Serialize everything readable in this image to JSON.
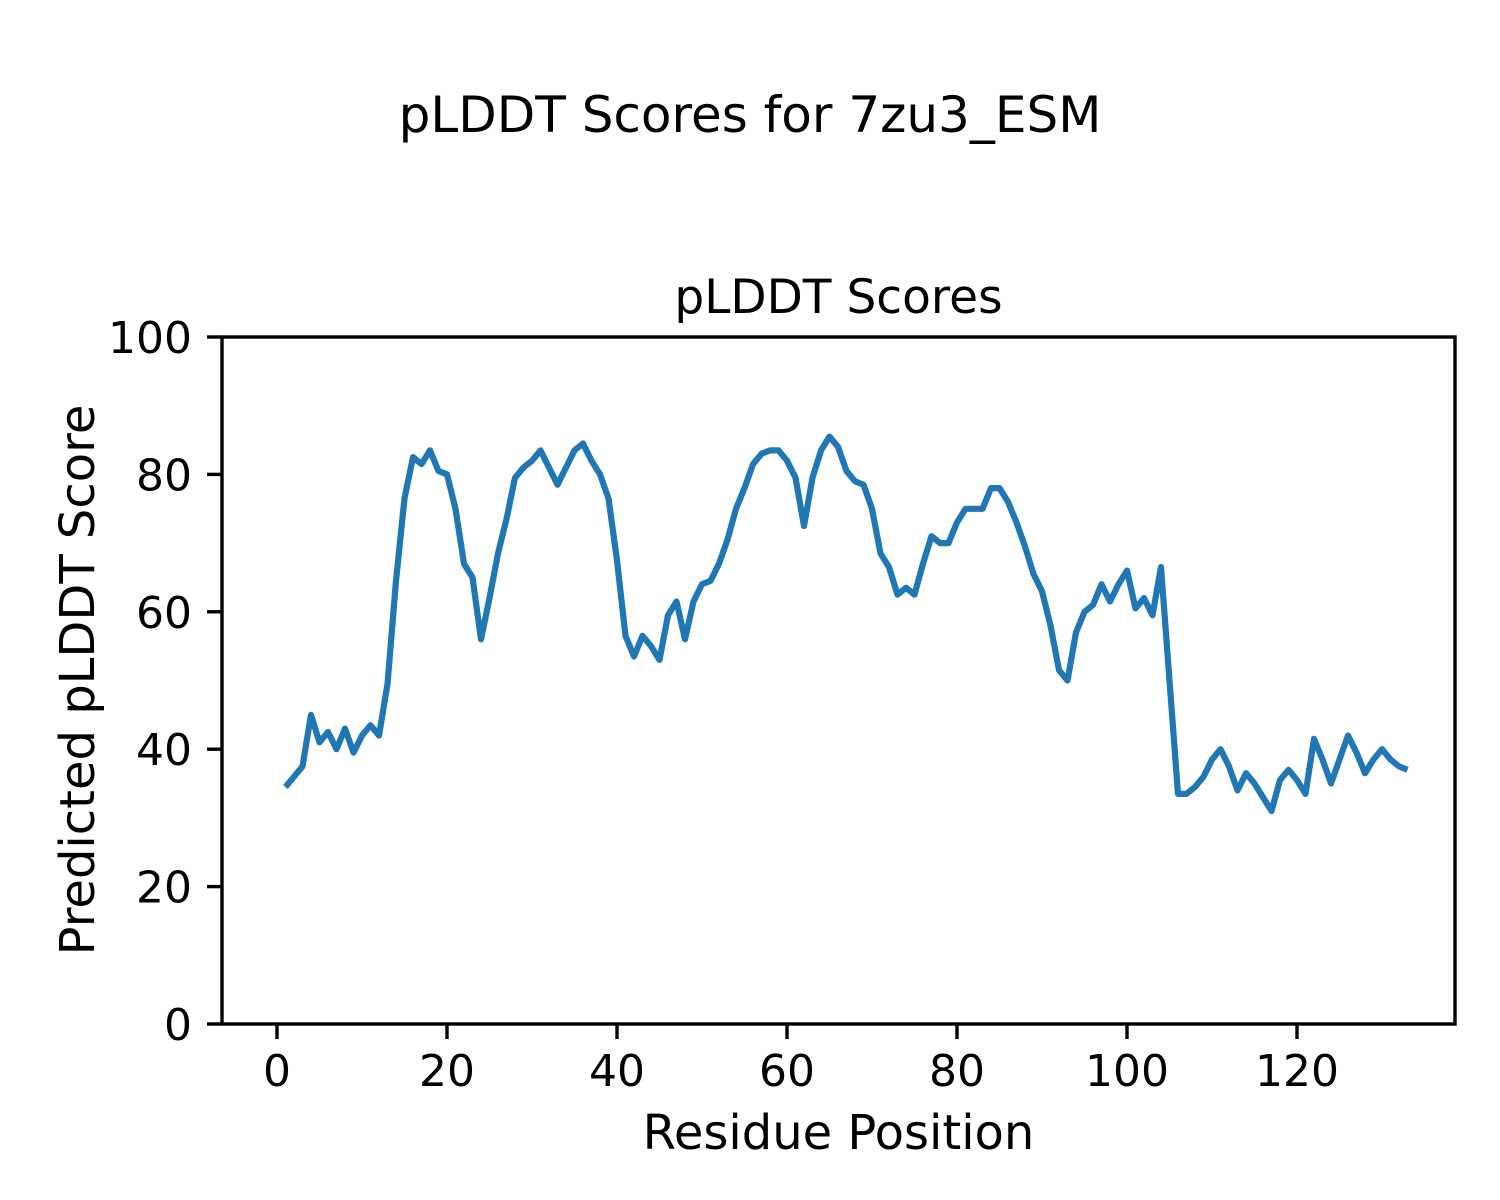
{
  "figure": {
    "suptitle": "pLDDT Scores for 7zu3_ESM",
    "axes_title": "pLDDT Scores",
    "xlabel": "Residue Position",
    "ylabel": "Predicted pLDDT Score",
    "background_color": "#ffffff",
    "text_color": "#000000",
    "spine_color": "#000000",
    "line_color": "#1f77b4"
  },
  "chart_data": {
    "type": "line",
    "title": "pLDDT Scores",
    "suptitle": "pLDDT Scores for 7zu3_ESM",
    "xlabel": "Residue Position",
    "ylabel": "Predicted pLDDT Score",
    "xlim": [
      -5.7,
      139.6
    ],
    "ylim": [
      0,
      100
    ],
    "xticks": [
      0,
      20,
      40,
      60,
      80,
      100,
      120
    ],
    "yticks": [
      0,
      20,
      40,
      60,
      80,
      100
    ],
    "grid": false,
    "legend": "none",
    "series": [
      {
        "name": "pLDDT",
        "color": "#1f77b4",
        "x_start": 1,
        "x_step": 1,
        "y": [
          34.5,
          36,
          37.5,
          45,
          41,
          42.5,
          40,
          43,
          39.5,
          42,
          43.5,
          42,
          49.5,
          64.5,
          76.5,
          82.5,
          81.5,
          83.5,
          80.5,
          80,
          75,
          67,
          65,
          56,
          62,
          68.5,
          73.5,
          79.5,
          81,
          82,
          83.5,
          81,
          78.5,
          81,
          83.5,
          84.5,
          82,
          80,
          76.5,
          67.5,
          56.5,
          53.5,
          56.5,
          55,
          53,
          59.5,
          61.5,
          56,
          61.5,
          64,
          64.5,
          67,
          70.5,
          75,
          78,
          81.5,
          83,
          83.5,
          83.5,
          82,
          79.5,
          72.5,
          79.5,
          83.5,
          85.5,
          84,
          80.5,
          79,
          78.5,
          75,
          68.5,
          66.5,
          62.5,
          63.5,
          62.5,
          67,
          71,
          70,
          70,
          73,
          75,
          75,
          75,
          78,
          78,
          76,
          73,
          69.5,
          65.5,
          63,
          58,
          51.5,
          50,
          57,
          60,
          61,
          64,
          61.5,
          64,
          66,
          60.5,
          62,
          59.5,
          66.5,
          50,
          33.5,
          33.5,
          34.5,
          36,
          38.5,
          40,
          37.5,
          34,
          36.5,
          35,
          33,
          31,
          35.5,
          37,
          35.5,
          33.5,
          41.5,
          38.5,
          35,
          38.5,
          42,
          39.5,
          36.5,
          38.5,
          40,
          38.5,
          37.5,
          37
        ]
      }
    ]
  }
}
